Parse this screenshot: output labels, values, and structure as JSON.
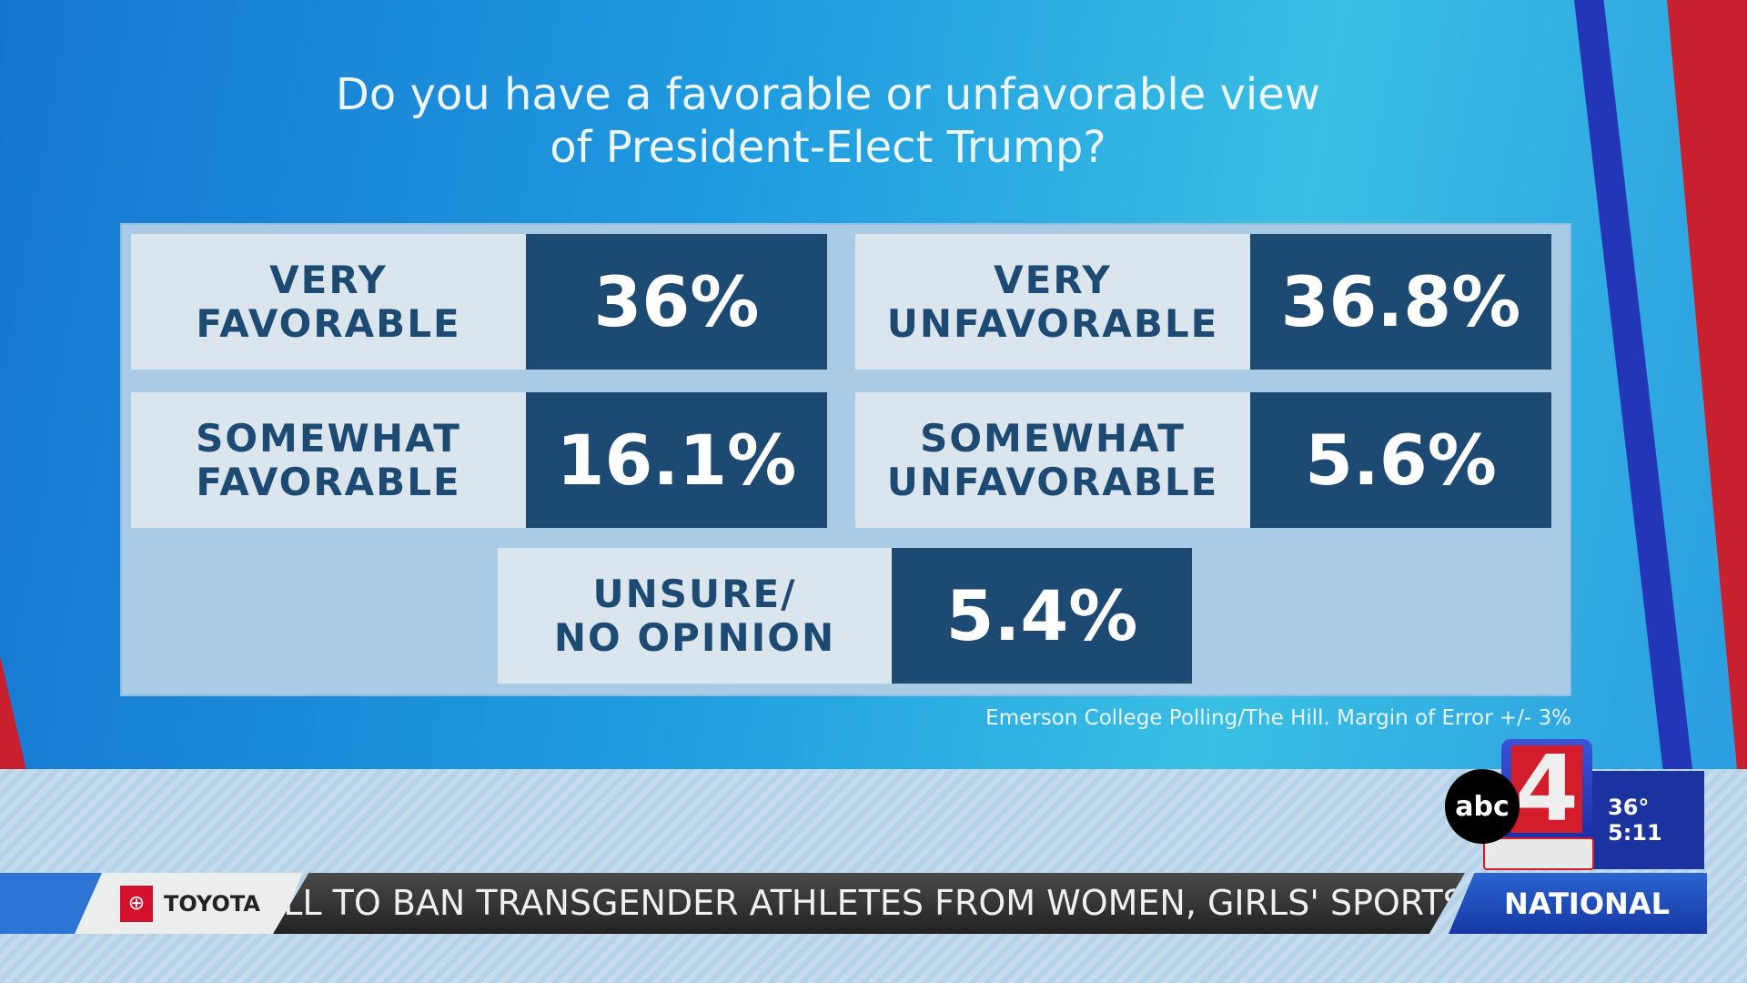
{
  "title_lines": [
    "Do you have a favorable or unfavorable view",
    "of President-Elect Trump?"
  ],
  "results": [
    {
      "label_lines": [
        "VERY",
        "FAVORABLE"
      ],
      "value": "36%"
    },
    {
      "label_lines": [
        "VERY",
        "UNFAVORABLE"
      ],
      "value": "36.8%"
    },
    {
      "label_lines": [
        "SOMEWHAT",
        "FAVORABLE"
      ],
      "value": "16.1%"
    },
    {
      "label_lines": [
        "SOMEWHAT",
        "UNFAVORABLE"
      ],
      "value": "5.6%"
    },
    {
      "label_lines": [
        "UNSURE/",
        "NO OPINION"
      ],
      "value": "5.4%"
    }
  ],
  "source": "Emerson College Polling/The Hill. Margin of Error +/- 3%",
  "ticker": {
    "sponsor": "TOYOTA",
    "headline": "ILL TO BAN TRANSGENDER ATHLETES FROM WOMEN, GIRLS' SPORTS",
    "section": "NATIONAL"
  },
  "station": {
    "network": "abc",
    "channel": "4"
  },
  "weather": {
    "temperature": "36°",
    "time": "5:11"
  },
  "colors": {
    "label_bg": "#dbe5ee",
    "value_bg": "#1d4a72",
    "panel": "#a9cbe6",
    "accent_red": "#d41d2a",
    "accent_blue": "#1b33a0"
  }
}
